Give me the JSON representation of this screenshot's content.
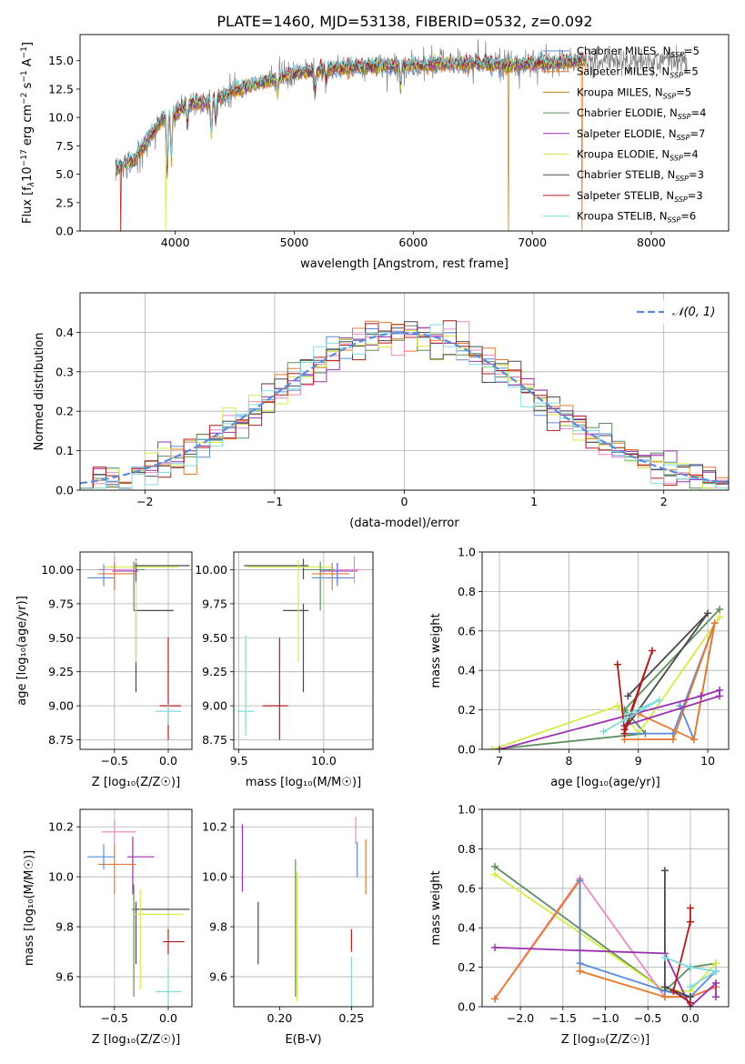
{
  "figure_title": "PLATE=1460, MJD=53138, FIBERID=0532, z=0.092",
  "colors": {
    "Chabrier MILES": "#5b8bd9",
    "Salpeter MILES": "#e8792b",
    "Kroupa MILES": "#b8860b",
    "Chabrier ELODIE": "#5f8f5f",
    "Salpeter ELODIE": "#9b30b0",
    "Kroupa ELODIE": "#d4ec45",
    "Chabrier STELIB": "#4a4a4a",
    "Salpeter STELIB": "#b01c1c",
    "Kroupa STELIB": "#7fdbe0",
    "Pink": "#e88bc0",
    "Data": "#808080",
    "Gaussian": "#5b8bd9"
  },
  "chart_data": [
    {
      "id": "spectrum",
      "type": "line",
      "title": "PLATE=1460, MJD=53138, FIBERID=0532, z=0.092",
      "xlabel": "wavelength [Angstrom, rest frame]",
      "ylabel_parts": [
        "Flux [f",
        "λ",
        "10",
        "−17",
        " erg cm",
        "−2",
        " s",
        "−1",
        " A",
        "−1",
        "]"
      ],
      "xlim": [
        3200,
        8650
      ],
      "ylim": [
        0,
        17.3
      ],
      "xticks": [
        4000,
        5000,
        6000,
        7000,
        8000
      ],
      "yticks": [
        0.0,
        2.5,
        5.0,
        7.5,
        10.0,
        12.5,
        15.0
      ],
      "legend": [
        {
          "name": "Chabrier MILES",
          "n": "5"
        },
        {
          "name": "Salpeter MILES",
          "n": "5"
        },
        {
          "name": "Kroupa MILES",
          "n": "5"
        },
        {
          "name": "Chabrier ELODIE",
          "n": "4"
        },
        {
          "name": "Salpeter ELODIE",
          "n": "7"
        },
        {
          "name": "Kroupa ELODIE",
          "n": "4"
        },
        {
          "name": "Chabrier STELIB",
          "n": "3"
        },
        {
          "name": "Salpeter STELIB",
          "n": "3"
        },
        {
          "name": "Kroupa STELIB",
          "n": "6"
        }
      ],
      "legend_placement": "upper right",
      "continuum": {
        "x": [
          3500,
          3650,
          3800,
          3900,
          4000,
          4100,
          4300,
          4500,
          4800,
          5000,
          5300,
          5600,
          6000,
          6400,
          6800,
          7200,
          7400
        ],
        "y": [
          5.5,
          6.2,
          8.5,
          10.0,
          10.2,
          11.2,
          11.4,
          12.4,
          13.3,
          13.9,
          14.3,
          14.5,
          14.6,
          14.8,
          14.6,
          14.8,
          15.0
        ]
      },
      "absorption_features": [
        {
          "x": 3933,
          "depth": 5.0
        },
        {
          "x": 3968,
          "depth": 3.5
        },
        {
          "x": 4102,
          "depth": 2.0
        },
        {
          "x": 4304,
          "depth": 3.0
        },
        {
          "x": 4340,
          "depth": 2.0
        },
        {
          "x": 4861,
          "depth": 1.5
        },
        {
          "x": 5175,
          "depth": 2.0
        },
        {
          "x": 5270,
          "depth": 1.0
        },
        {
          "x": 5893,
          "depth": 1.8
        }
      ],
      "model_dropouts": [
        {
          "x": 3540,
          "series": "Salpeter STELIB"
        },
        {
          "x": 3920,
          "series": "Kroupa ELODIE"
        },
        {
          "x": 6800,
          "series": "Kroupa MILES"
        },
        {
          "x": 7420,
          "series": "Salpeter MILES"
        }
      ],
      "data_end": 8300
    },
    {
      "id": "residuals",
      "type": "step-histogram",
      "xlabel": "(data-model)/error",
      "ylabel": "Normed distribution",
      "xlim": [
        -2.5,
        2.5
      ],
      "ylim": [
        0,
        0.5
      ],
      "xticks": [
        -2,
        -1,
        0,
        1,
        2
      ],
      "yticks": [
        0.0,
        0.1,
        0.2,
        0.3,
        0.4
      ],
      "bin_width": 0.1,
      "legend": "𝒩(0, 1)",
      "legend_placement": "upper right",
      "grid": true
    },
    {
      "id": "age_vs_Z",
      "type": "errorbar",
      "xlabel": "Z [log₁₀(Z/Z☉)]",
      "ylabel": "age  [log₁₀(age/yr)]",
      "xlim": [
        -0.82,
        0.22
      ],
      "ylim": [
        8.68,
        10.13
      ],
      "xticks": [
        -0.5,
        0.0
      ],
      "yticks": [
        8.75,
        9.0,
        9.25,
        9.5,
        9.75,
        10.0
      ],
      "points": [
        {
          "series": "Salpeter STELIB",
          "x": 0.0,
          "xerr": [
            0.08,
            0.12
          ],
          "y": 9.0,
          "yerr": [
            0.25,
            0.5
          ]
        },
        {
          "series": "Kroupa STELIB",
          "x": 0.0,
          "xerr": [
            0.12,
            0.12
          ],
          "y": 8.96,
          "yerr": [
            0.1,
            0.05
          ]
        },
        {
          "series": "Chabrier STELIB",
          "x": -0.3,
          "xerr": [
            0.02,
            0.35
          ],
          "y": 9.7,
          "yerr": [
            0.6,
            0.05
          ]
        },
        {
          "series": "Chabrier STELIB",
          "x": -0.3,
          "xerr": [
            0.01,
            0.5
          ],
          "y": 10.03,
          "yerr": [
            0.1,
            0.05
          ]
        },
        {
          "series": "Kroupa ELODIE",
          "x": -0.3,
          "xerr": [
            0.3,
            0.4
          ],
          "y": 10.02,
          "yerr": [
            0.7,
            0.05
          ]
        },
        {
          "series": "Chabrier ELODIE",
          "x": -0.32,
          "xerr": [
            0.32,
            0.1
          ],
          "y": 10.0,
          "yerr": [
            0.3,
            0.06
          ]
        },
        {
          "series": "Salpeter ELODIE",
          "x": -0.3,
          "xerr": [
            0.22,
            0.02
          ],
          "y": 9.99,
          "yerr": [
            0.08,
            0.06
          ]
        },
        {
          "series": "Pink",
          "x": -0.5,
          "xerr": [
            0.12,
            0.2
          ],
          "y": 10.0,
          "yerr": [
            0.1,
            0.1
          ]
        },
        {
          "series": "Salpeter MILES",
          "x": -0.5,
          "xerr": [
            0.15,
            0.2
          ],
          "y": 9.97,
          "yerr": [
            0.12,
            0.08
          ]
        },
        {
          "series": "Chabrier MILES",
          "x": -0.6,
          "xerr": [
            0.15,
            0.1
          ],
          "y": 9.94,
          "yerr": [
            0.06,
            0.1
          ]
        }
      ]
    },
    {
      "id": "age_vs_mass",
      "type": "errorbar",
      "xlabel": "mass [log₁₀(M/M☉)]",
      "ylabel": "",
      "xlim": [
        9.47,
        10.29
      ],
      "ylim": [
        8.68,
        10.13
      ],
      "xticks": [
        9.5,
        10.0
      ],
      "yticks": [
        8.75,
        9.0,
        9.25,
        9.5,
        9.75,
        10.0
      ],
      "points": [
        {
          "series": "Salpeter STELIB",
          "x": 9.74,
          "xerr": [
            0.1,
            0.05
          ],
          "y": 9.0,
          "yerr": [
            0.25,
            0.5
          ]
        },
        {
          "series": "Kroupa STELIB",
          "x": 9.54,
          "xerr": [
            0.05,
            0.05
          ],
          "y": 8.96,
          "yerr": [
            0.18,
            0.56
          ]
        },
        {
          "series": "Chabrier STELIB",
          "x": 9.88,
          "xerr": [
            0.12,
            0.03
          ],
          "y": 9.7,
          "yerr": [
            0.6,
            0.05
          ]
        },
        {
          "series": "Chabrier STELIB",
          "x": 9.88,
          "xerr": [
            0.35,
            0.03
          ],
          "y": 10.03,
          "yerr": [
            0.1,
            0.05
          ]
        },
        {
          "series": "Kroupa ELODIE",
          "x": 9.85,
          "xerr": [
            0.3,
            0.2
          ],
          "y": 10.02,
          "yerr": [
            0.7,
            0.05
          ]
        },
        {
          "series": "Chabrier ELODIE",
          "x": 9.98,
          "xerr": [
            0.1,
            0.08
          ],
          "y": 10.0,
          "yerr": [
            0.3,
            0.06
          ]
        },
        {
          "series": "Salpeter ELODIE",
          "x": 10.08,
          "xerr": [
            0.1,
            0.12
          ],
          "y": 9.99,
          "yerr": [
            0.08,
            0.06
          ]
        },
        {
          "series": "Pink",
          "x": 10.18,
          "xerr": [
            0.12,
            0.05
          ],
          "y": 10.0,
          "yerr": [
            0.1,
            0.1
          ]
        },
        {
          "series": "Salpeter MILES",
          "x": 10.05,
          "xerr": [
            0.12,
            0.1
          ],
          "y": 9.97,
          "yerr": [
            0.12,
            0.08
          ]
        },
        {
          "series": "Chabrier MILES",
          "x": 10.08,
          "xerr": [
            0.15,
            0.1
          ],
          "y": 9.94,
          "yerr": [
            0.06,
            0.1
          ]
        }
      ]
    },
    {
      "id": "mass_weight_vs_age",
      "type": "line",
      "xlabel": "age  [log₁₀(age/yr)]",
      "ylabel": "mass weight",
      "xlim": [
        6.75,
        10.3
      ],
      "ylim": [
        0,
        1.0
      ],
      "xticks": [
        7,
        8,
        9,
        10
      ],
      "yticks": [
        0.0,
        0.2,
        0.4,
        0.6,
        0.8,
        1.0
      ],
      "grid": true,
      "series": [
        {
          "name": "Chabrier ELODIE",
          "x": [
            6.9,
            9.1,
            8.8,
            10.17
          ],
          "y": [
            0.0,
            0.08,
            0.2,
            0.71
          ]
        },
        {
          "name": "Kroupa ELODIE",
          "x": [
            6.9,
            8.7,
            9.0,
            10.17
          ],
          "y": [
            0.0,
            0.22,
            0.08,
            0.67
          ]
        },
        {
          "name": "Chabrier MILES",
          "x": [
            8.8,
            9.5,
            10.1,
            9.8,
            9.6
          ],
          "y": [
            0.08,
            0.08,
            0.64,
            0.05,
            0.22
          ]
        },
        {
          "name": "Salpeter MILES",
          "x": [
            8.8,
            9.5,
            10.1,
            9.8,
            9.0
          ],
          "y": [
            0.05,
            0.05,
            0.64,
            0.05,
            0.18
          ]
        },
        {
          "name": "Salpeter ELODIE",
          "x": [
            7.0,
            9.9,
            10.17,
            10.17,
            8.8
          ],
          "y": [
            0.0,
            0.27,
            0.3,
            0.27,
            0.12
          ]
        },
        {
          "name": "Chabrier STELIB",
          "x": [
            8.8,
            10.0,
            8.85
          ],
          "y": [
            0.1,
            0.69,
            0.27
          ]
        },
        {
          "name": "Salpeter STELIB",
          "x": [
            8.7,
            8.8,
            9.2,
            8.8
          ],
          "y": [
            0.43,
            0.1,
            0.5,
            0.08
          ]
        },
        {
          "name": "Kroupa STELIB",
          "x": [
            8.5,
            8.8,
            9.3,
            8.85
          ],
          "y": [
            0.09,
            0.15,
            0.25,
            0.18
          ]
        }
      ]
    },
    {
      "id": "mass_vs_Z",
      "type": "errorbar",
      "xlabel": "Z [log₁₀(Z/Z☉)]",
      "ylabel": "mass [log₁₀(M/M☉)]",
      "xlim": [
        -0.82,
        0.22
      ],
      "ylim": [
        9.48,
        10.27
      ],
      "xticks": [
        -0.5,
        0.0
      ],
      "yticks": [
        9.6,
        9.8,
        10.0,
        10.2
      ],
      "points": [
        {
          "series": "Salpeter STELIB",
          "x": 0.0,
          "xerr": [
            0.05,
            0.15
          ],
          "y": 9.74,
          "yerr": [
            0.05,
            0.05
          ]
        },
        {
          "series": "Kroupa STELIB",
          "x": 0.0,
          "xerr": [
            0.12,
            0.12
          ],
          "y": 9.54,
          "yerr": [
            0.05,
            0.1
          ]
        },
        {
          "series": "Chabrier STELIB",
          "x": -0.3,
          "xerr": [
            0.02,
            0.5
          ],
          "y": 9.87,
          "yerr": [
            0.22,
            0.03
          ]
        },
        {
          "series": "Kroupa ELODIE",
          "x": -0.26,
          "xerr": [
            0.05,
            0.4
          ],
          "y": 9.85,
          "yerr": [
            0.3,
            0.1
          ]
        },
        {
          "series": "Chabrier ELODIE",
          "x": -0.32,
          "xerr": [
            0.02,
            0.02
          ],
          "y": 9.87,
          "yerr": [
            0.35,
            0.1
          ]
        },
        {
          "series": "Salpeter ELODIE",
          "x": -0.33,
          "xerr": [
            0.05,
            0.2
          ],
          "y": 10.08,
          "yerr": [
            0.15,
            0.08
          ]
        },
        {
          "series": "Pink",
          "x": -0.5,
          "xerr": [
            0.12,
            0.2
          ],
          "y": 10.18,
          "yerr": [
            0.05,
            0.05
          ]
        },
        {
          "series": "Salpeter MILES",
          "x": -0.5,
          "xerr": [
            0.15,
            0.2
          ],
          "y": 10.05,
          "yerr": [
            0.12,
            0.08
          ]
        },
        {
          "series": "Chabrier MILES",
          "x": -0.6,
          "xerr": [
            0.15,
            0.1
          ],
          "y": 10.08,
          "yerr": [
            0.05,
            0.05
          ]
        }
      ]
    },
    {
      "id": "mass_vs_EBV",
      "type": "errorbar",
      "xlabel": "E(B-V)",
      "ylabel": "",
      "xlim": [
        0.168,
        0.265
      ],
      "ylim": [
        9.48,
        10.27
      ],
      "xticks": [
        0.2,
        0.25
      ],
      "xticklabels": [
        "0.20",
        "0.25"
      ],
      "yticks": [
        9.6,
        9.8,
        10.0,
        10.2
      ],
      "points": [
        {
          "series": "Salpeter ELODIE",
          "x": 0.174,
          "y": 10.08,
          "yerr": [
            0.14,
            0.13
          ]
        },
        {
          "series": "Chabrier STELIB",
          "x": 0.185,
          "y": 9.78,
          "yerr": [
            0.13,
            0.12
          ]
        },
        {
          "series": "Chabrier ELODIE",
          "x": 0.211,
          "y": 9.87,
          "yerr": [
            0.35,
            0.2
          ]
        },
        {
          "series": "Kroupa ELODIE",
          "x": 0.212,
          "y": 9.8,
          "yerr": [
            0.3,
            0.22
          ]
        },
        {
          "series": "Salpeter STELIB",
          "x": 0.25,
          "y": 9.74,
          "yerr": [
            0.04,
            0.05
          ]
        },
        {
          "series": "Kroupa STELIB",
          "x": 0.25,
          "y": 9.54,
          "yerr": [
            0.06,
            0.14
          ]
        },
        {
          "series": "Pink",
          "x": 0.253,
          "y": 10.18,
          "yerr": [
            0.05,
            0.06
          ]
        },
        {
          "series": "Chabrier MILES",
          "x": 0.254,
          "y": 10.08,
          "yerr": [
            0.08,
            0.06
          ]
        },
        {
          "series": "Salpeter MILES",
          "x": 0.26,
          "y": 10.04,
          "yerr": [
            0.11,
            0.11
          ]
        }
      ]
    },
    {
      "id": "mass_weight_vs_Z",
      "type": "line",
      "xlabel": "Z [log₁₀(Z/Z☉)]",
      "ylabel": "mass weight",
      "xlim": [
        -2.45,
        0.45
      ],
      "ylim": [
        0,
        1.0
      ],
      "xticks": [
        -2.0,
        -1.5,
        -1.0,
        -0.5,
        0.0
      ],
      "yticks": [
        0.0,
        0.2,
        0.4,
        0.6,
        0.8,
        1.0
      ],
      "grid": true,
      "series": [
        {
          "name": "Chabrier ELODIE",
          "x": [
            -2.3,
            -0.3,
            0.0,
            0.3
          ],
          "y": [
            0.71,
            0.08,
            0.2,
            0.22
          ]
        },
        {
          "name": "Kroupa ELODIE",
          "x": [
            -2.3,
            -0.3,
            0.0,
            0.3
          ],
          "y": [
            0.67,
            0.08,
            0.08,
            0.22
          ]
        },
        {
          "name": "Pink",
          "x": [
            -2.3,
            -1.3,
            -0.3,
            0.0,
            0.3
          ],
          "y": [
            0.04,
            0.65,
            0.05,
            0.05,
            0.1
          ]
        },
        {
          "name": "Salpeter MILES",
          "x": [
            -2.3,
            -1.3,
            -1.3,
            -0.3,
            0.0,
            0.3
          ],
          "y": [
            0.04,
            0.64,
            0.18,
            0.05,
            0.05,
            0.1
          ]
        },
        {
          "name": "Chabrier MILES",
          "x": [
            -1.3,
            -1.3,
            -0.3,
            0.0,
            0.3
          ],
          "y": [
            0.64,
            0.22,
            0.08,
            0.05,
            0.18
          ]
        },
        {
          "name": "Salpeter ELODIE",
          "x": [
            -2.3,
            -0.3,
            0.0,
            0.3,
            0.3
          ],
          "y": [
            0.3,
            0.27,
            0.0,
            0.12,
            0.05
          ]
        },
        {
          "name": "Chabrier STELIB",
          "x": [
            -0.3,
            -0.3,
            0.0
          ],
          "y": [
            0.69,
            0.1,
            0.05
          ]
        },
        {
          "name": "Salpeter STELIB",
          "x": [
            0.0,
            0.0,
            -0.2,
            0.0
          ],
          "y": [
            0.5,
            0.43,
            0.08,
            0.02
          ]
        },
        {
          "name": "Kroupa STELIB",
          "x": [
            -0.3,
            0.0,
            0.3,
            0.0
          ],
          "y": [
            0.25,
            0.2,
            0.18,
            0.1
          ]
        }
      ]
    }
  ]
}
